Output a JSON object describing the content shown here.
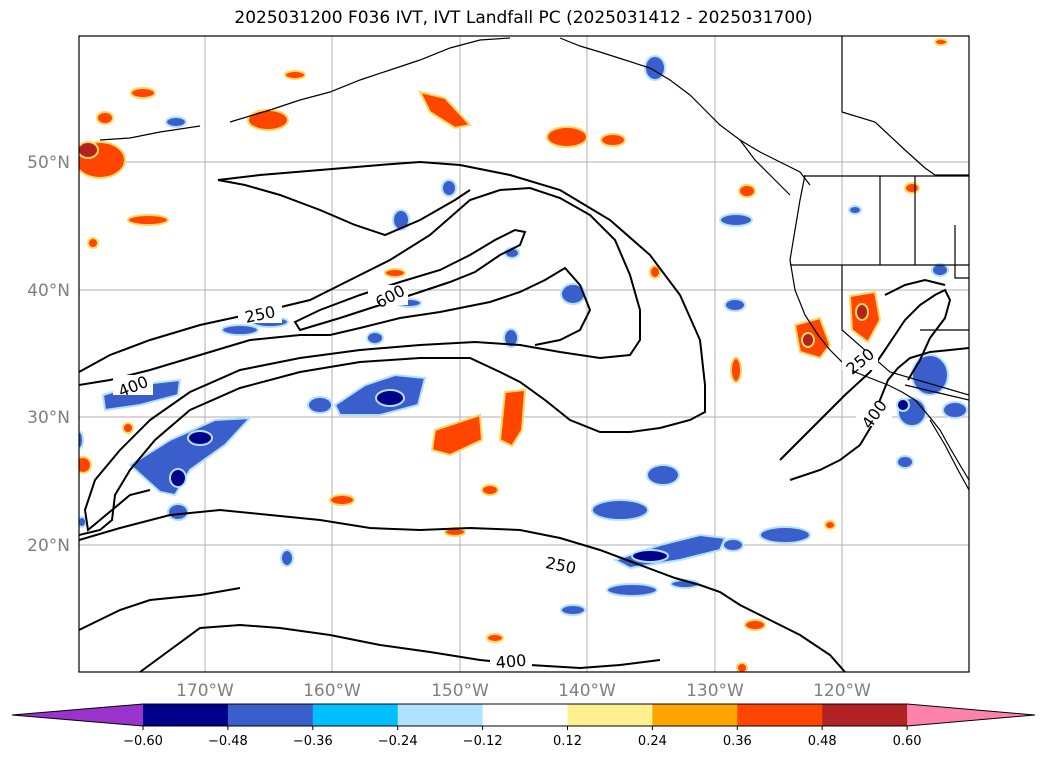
{
  "title": "2025031200 F036 IVT, IVT Landfall PC (2025031412 - 2025031700)",
  "lat_labels": [
    "50°N",
    "40°N",
    "30°N",
    "20°N"
  ],
  "lon_labels": [
    "170°W",
    "160°W",
    "150°W",
    "140°W",
    "130°W",
    "120°W"
  ],
  "contour_labels": [
    "250",
    "600",
    "400",
    "250",
    "400",
    "250",
    "400"
  ],
  "colorbar": {
    "ticks": [
      "−0.60",
      "−0.48",
      "−0.36",
      "−0.24",
      "−0.12",
      "0.12",
      "0.24",
      "0.36",
      "0.48",
      "0.60"
    ],
    "colors": [
      "#9a32cd",
      "#00008b",
      "#3a5fcd",
      "#00bfff",
      "#b0e2ff",
      "#ffffff",
      "#fff08f",
      "#ffa500",
      "#ff4500",
      "#b22222",
      "#ff82ab"
    ]
  }
}
